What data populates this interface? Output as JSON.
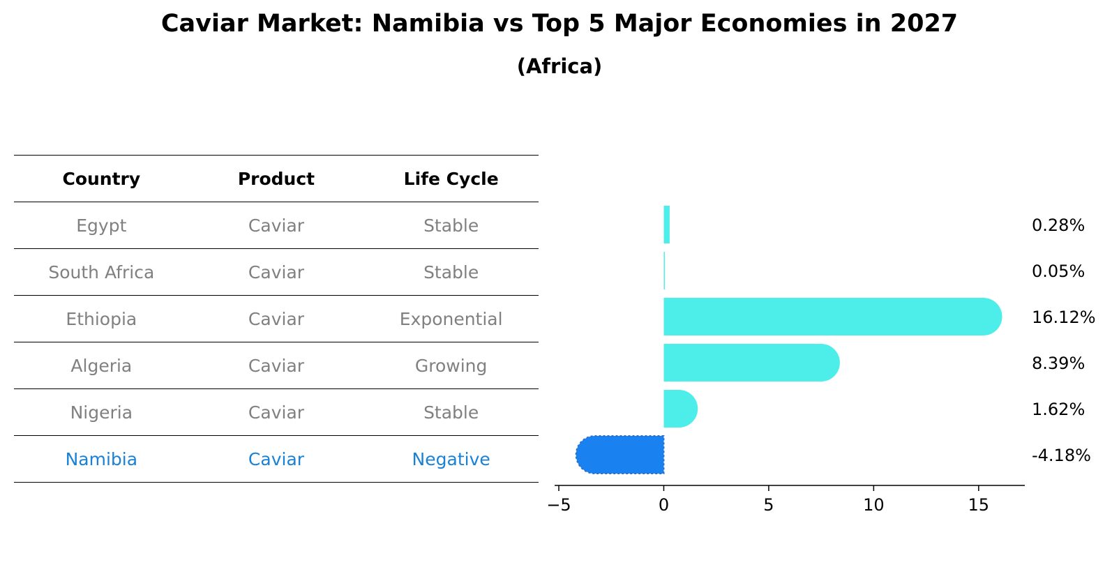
{
  "title": "Caviar Market: Namibia vs Top 5 Major Economies in 2027",
  "subtitle": "(Africa)",
  "table": {
    "headers": [
      "Country",
      "Product",
      "Life Cycle"
    ],
    "rows": [
      [
        "Egypt",
        "Caviar",
        "Stable"
      ],
      [
        "South Africa",
        "Caviar",
        "Stable"
      ],
      [
        "Ethiopia",
        "Caviar",
        "Exponential"
      ],
      [
        "Algeria",
        "Caviar",
        "Growing"
      ],
      [
        "Nigeria",
        "Caviar",
        "Stable"
      ],
      [
        "Namibia",
        "Caviar",
        "Negative"
      ]
    ],
    "highlight_row": 5
  },
  "colors": {
    "bar": "#4deeea",
    "highlight": "#1a82f0",
    "highlight_text": "#1a82d6",
    "muted_text": "#808080"
  },
  "chart_data": {
    "type": "bar",
    "orientation": "horizontal",
    "categories": [
      "Egypt",
      "South Africa",
      "Ethiopia",
      "Algeria",
      "Nigeria",
      "Namibia"
    ],
    "values": [
      0.28,
      0.05,
      16.12,
      8.39,
      1.62,
      -4.18
    ],
    "value_labels": [
      "0.28%",
      "0.05%",
      "16.12%",
      "8.39%",
      "1.62%",
      "-4.18%"
    ],
    "xlim": [
      -5.2,
      17.2
    ],
    "xticks": [
      -5,
      0,
      5,
      10,
      15
    ],
    "xtick_labels": [
      "−5",
      "0",
      "5",
      "10",
      "15"
    ],
    "highlight_index": 5,
    "title": "",
    "xlabel": "",
    "ylabel": ""
  }
}
